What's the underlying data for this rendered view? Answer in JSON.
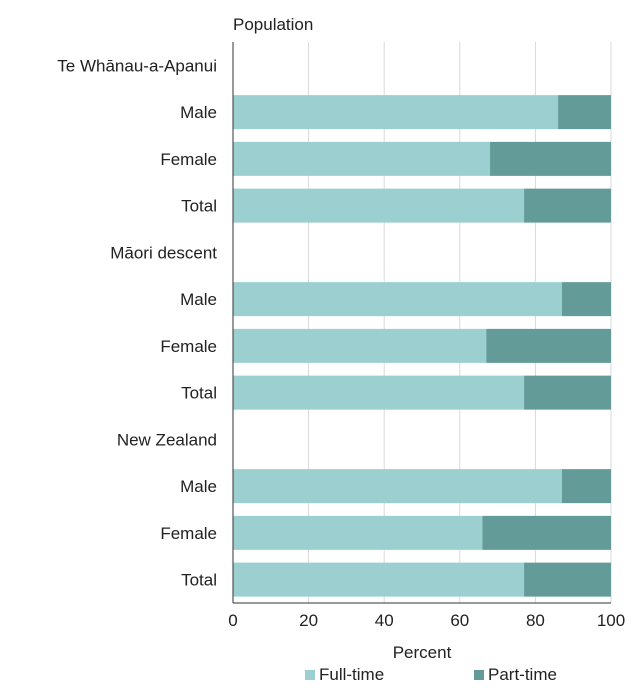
{
  "chart_data": {
    "type": "bar",
    "orientation": "horizontal",
    "stacked": true,
    "ylabel": "Population",
    "xlabel": "Percent",
    "xlim": [
      0,
      100
    ],
    "xticks": [
      0,
      20,
      40,
      60,
      80,
      100
    ],
    "grid": "vertical",
    "legend_position": "bottom",
    "rows": [
      {
        "label": "Te Whānau-a-Apanui",
        "group": true
      },
      {
        "label": "Male",
        "values": [
          86,
          14
        ]
      },
      {
        "label": "Female",
        "values": [
          68,
          32
        ]
      },
      {
        "label": "Total",
        "values": [
          77,
          23
        ]
      },
      {
        "label": "Māori descent",
        "group": true
      },
      {
        "label": "Male",
        "values": [
          87,
          13
        ]
      },
      {
        "label": "Female",
        "values": [
          67,
          33
        ]
      },
      {
        "label": "Total",
        "values": [
          77,
          23
        ]
      },
      {
        "label": "New Zealand",
        "group": true
      },
      {
        "label": "Male",
        "values": [
          87,
          13
        ]
      },
      {
        "label": "Female",
        "values": [
          66,
          34
        ]
      },
      {
        "label": "Total",
        "values": [
          77,
          23
        ]
      }
    ],
    "series": [
      {
        "name": "Full-time",
        "color": "#9ccfd0"
      },
      {
        "name": "Part-time",
        "color": "#629b98"
      }
    ]
  }
}
